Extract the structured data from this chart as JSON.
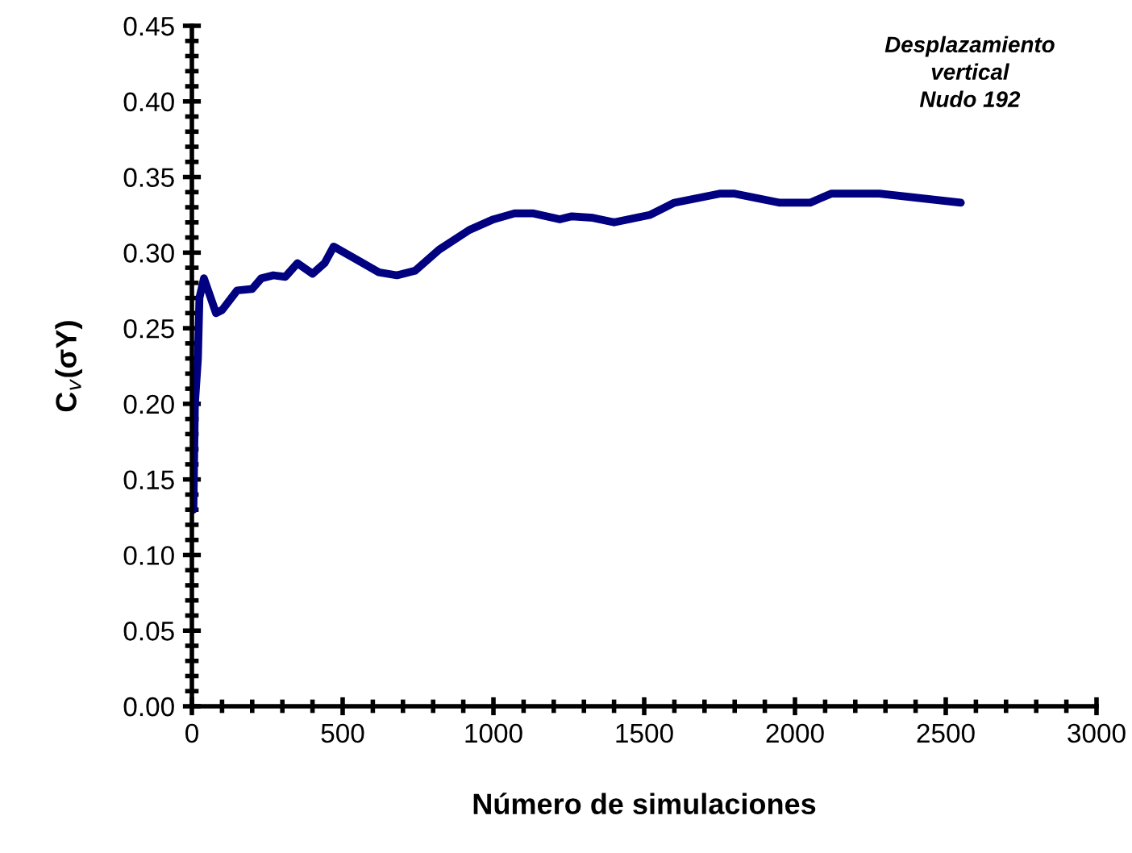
{
  "chart_data": {
    "type": "line",
    "xlabel": "Número de simulaciones",
    "ylabel": "C$_{v}$(σY)",
    "annotations": [
      "Desplazamiento\nvertical\nNudo 192"
    ],
    "series": [
      {
        "color": "#000080",
        "x": [
          5,
          10,
          20,
          25,
          40,
          80,
          100,
          150,
          200,
          230,
          270,
          310,
          350,
          400,
          440,
          470,
          550,
          620,
          680,
          740,
          820,
          920,
          1000,
          1070,
          1130,
          1220,
          1260,
          1330,
          1400,
          1520,
          1600,
          1750,
          1800,
          1950,
          2050,
          2120,
          2280,
          2550
        ],
        "values": [
          0.13,
          0.2,
          0.23,
          0.27,
          0.283,
          0.26,
          0.262,
          0.275,
          0.276,
          0.283,
          0.285,
          0.284,
          0.293,
          0.286,
          0.293,
          0.304,
          0.295,
          0.287,
          0.285,
          0.288,
          0.302,
          0.315,
          0.322,
          0.326,
          0.326,
          0.322,
          0.324,
          0.323,
          0.32,
          0.325,
          0.333,
          0.339,
          0.339,
          0.333,
          0.333,
          0.339,
          0.339,
          0.333
        ]
      }
    ],
    "xlim": [
      0,
      3000
    ],
    "xticks": [
      0,
      500,
      1000,
      1500,
      2000,
      2500,
      3000
    ],
    "ylim": [
      0,
      0.45
    ],
    "yticks": [
      {
        "value": 0,
        "label": "0.00"
      },
      {
        "value": 0.05,
        "label": "0.05"
      },
      {
        "value": 0.1,
        "label": "0.10"
      },
      {
        "value": 0.15,
        "label": "0.15"
      },
      {
        "value": 0.2,
        "label": "0.20"
      },
      {
        "value": 0.25,
        "label": "0.25"
      },
      {
        "value": 0.3,
        "label": "0.30"
      },
      {
        "value": 0.35,
        "label": "0.35"
      },
      {
        "value": 0.4,
        "label": "0.40"
      },
      {
        "value": 0.45,
        "label": "0.45"
      }
    ],
    "grid": false,
    "legend": false,
    "marker": "none",
    "line_style": "solid"
  }
}
